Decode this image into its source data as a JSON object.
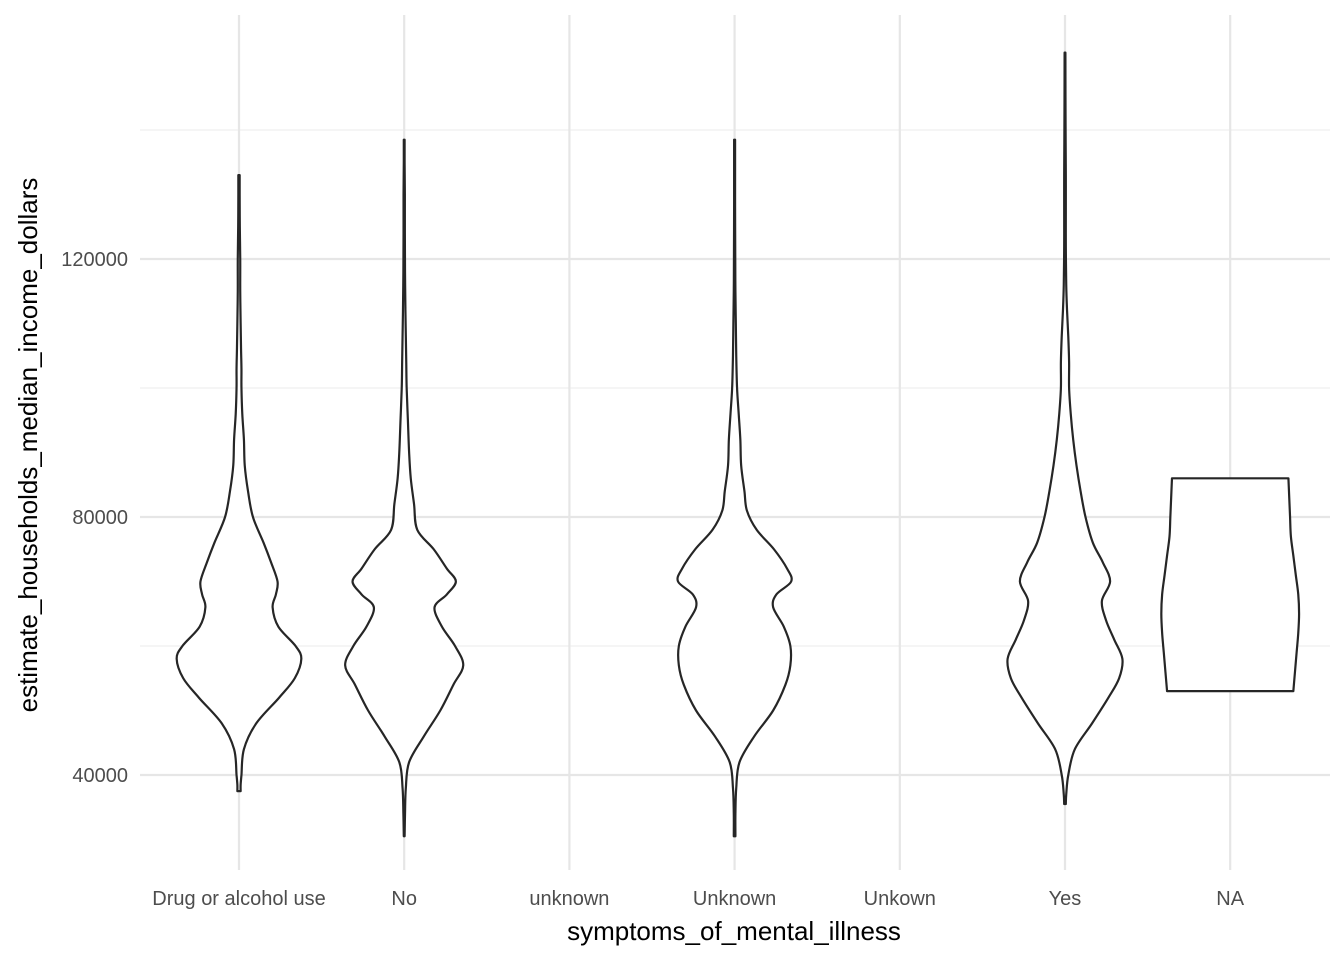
{
  "chart_data": {
    "type": "violin",
    "xlabel": "symptoms_of_mental_illness",
    "ylabel": "estimate_households_median_income_dollars",
    "categories": [
      "Drug or alcohol use",
      "No",
      "unknown",
      "Unknown",
      "Unkown",
      "Yes",
      "NA"
    ],
    "y_ticks": [
      40000,
      80000,
      120000
    ],
    "y_tick_labels": [
      "40000",
      "80000",
      "120000"
    ],
    "ylim": [
      25000,
      152000
    ],
    "grid": true,
    "legend": "none",
    "line_color": "#262626",
    "fill_color": "#ffffff",
    "series": [
      {
        "category": "Drug or alcohol use",
        "y_min": 37500,
        "y_max": 133000,
        "density_profile": [
          [
            37500,
            0.02
          ],
          [
            38500,
            0.02
          ],
          [
            40000,
            0.03
          ],
          [
            44000,
            0.06
          ],
          [
            48000,
            0.21
          ],
          [
            52000,
            0.49
          ],
          [
            55000,
            0.68
          ],
          [
            58000,
            0.76
          ],
          [
            60000,
            0.69
          ],
          [
            63000,
            0.48
          ],
          [
            66000,
            0.41
          ],
          [
            68000,
            0.45
          ],
          [
            70000,
            0.47
          ],
          [
            73000,
            0.39
          ],
          [
            76000,
            0.3
          ],
          [
            80000,
            0.17
          ],
          [
            84000,
            0.11
          ],
          [
            88000,
            0.07
          ],
          [
            92000,
            0.06
          ],
          [
            96000,
            0.04
          ],
          [
            100000,
            0.03
          ],
          [
            103000,
            0.03
          ],
          [
            106000,
            0.025
          ],
          [
            110000,
            0.02
          ],
          [
            115000,
            0.015
          ],
          [
            120000,
            0.015
          ],
          [
            125000,
            0.01
          ],
          [
            130000,
            0.008
          ],
          [
            133000,
            0.008
          ]
        ]
      },
      {
        "category": "No",
        "y_min": 30500,
        "y_max": 138500,
        "density_profile": [
          [
            30500,
            0.005
          ],
          [
            34000,
            0.01
          ],
          [
            38000,
            0.02
          ],
          [
            42000,
            0.06
          ],
          [
            46000,
            0.24
          ],
          [
            50000,
            0.44
          ],
          [
            54000,
            0.6
          ],
          [
            57000,
            0.72
          ],
          [
            60000,
            0.62
          ],
          [
            63000,
            0.46
          ],
          [
            66000,
            0.37
          ],
          [
            68000,
            0.52
          ],
          [
            70000,
            0.63
          ],
          [
            72000,
            0.52
          ],
          [
            75000,
            0.36
          ],
          [
            78000,
            0.16
          ],
          [
            82000,
            0.12
          ],
          [
            86000,
            0.08
          ],
          [
            90000,
            0.06
          ],
          [
            95000,
            0.045
          ],
          [
            100000,
            0.03
          ],
          [
            104000,
            0.025
          ],
          [
            108000,
            0.02
          ],
          [
            112000,
            0.015
          ],
          [
            118000,
            0.01
          ],
          [
            124000,
            0.008
          ],
          [
            130000,
            0.008
          ],
          [
            135000,
            0.005
          ],
          [
            138500,
            0.005
          ]
        ]
      },
      {
        "category": "Unknown",
        "y_min": 30500,
        "y_max": 138500,
        "density_profile": [
          [
            30500,
            0.01
          ],
          [
            34000,
            0.01
          ],
          [
            38000,
            0.02
          ],
          [
            42000,
            0.06
          ],
          [
            46000,
            0.24
          ],
          [
            50000,
            0.47
          ],
          [
            54000,
            0.62
          ],
          [
            57000,
            0.68
          ],
          [
            60000,
            0.68
          ],
          [
            63000,
            0.6
          ],
          [
            66000,
            0.47
          ],
          [
            68000,
            0.51
          ],
          [
            70000,
            0.69
          ],
          [
            72000,
            0.64
          ],
          [
            75000,
            0.48
          ],
          [
            78000,
            0.27
          ],
          [
            81000,
            0.15
          ],
          [
            84000,
            0.12
          ],
          [
            88000,
            0.08
          ],
          [
            92000,
            0.07
          ],
          [
            96000,
            0.05
          ],
          [
            100000,
            0.03
          ],
          [
            105000,
            0.02
          ],
          [
            110000,
            0.015
          ],
          [
            115000,
            0.01
          ],
          [
            120000,
            0.008
          ],
          [
            128000,
            0.006
          ],
          [
            135000,
            0.006
          ],
          [
            138500,
            0.006
          ]
        ]
      },
      {
        "category": "Yes",
        "y_min": 35500,
        "y_max": 152000,
        "density_profile": [
          [
            35500,
            0.01
          ],
          [
            37000,
            0.015
          ],
          [
            40000,
            0.04
          ],
          [
            44000,
            0.12
          ],
          [
            48000,
            0.33
          ],
          [
            52000,
            0.53
          ],
          [
            55000,
            0.66
          ],
          [
            58000,
            0.7
          ],
          [
            61000,
            0.6
          ],
          [
            64000,
            0.5
          ],
          [
            67000,
            0.45
          ],
          [
            70000,
            0.55
          ],
          [
            73000,
            0.46
          ],
          [
            76000,
            0.34
          ],
          [
            80000,
            0.25
          ],
          [
            84000,
            0.19
          ],
          [
            88000,
            0.14
          ],
          [
            92000,
            0.1
          ],
          [
            96000,
            0.07
          ],
          [
            100000,
            0.05
          ],
          [
            104000,
            0.05
          ],
          [
            108000,
            0.04
          ],
          [
            112000,
            0.025
          ],
          [
            116000,
            0.015
          ],
          [
            122000,
            0.01
          ],
          [
            128000,
            0.01
          ],
          [
            133000,
            0.01
          ],
          [
            138000,
            0.008
          ],
          [
            145000,
            0.006
          ],
          [
            152000,
            0.005
          ]
        ]
      },
      {
        "category": "NA",
        "y_min": 53000,
        "y_max": 86000,
        "density_profile": [
          [
            53000,
            0.77
          ],
          [
            56000,
            0.79
          ],
          [
            59000,
            0.81
          ],
          [
            62000,
            0.83
          ],
          [
            65000,
            0.84
          ],
          [
            68000,
            0.83
          ],
          [
            71000,
            0.8
          ],
          [
            74000,
            0.77
          ],
          [
            77000,
            0.74
          ],
          [
            80000,
            0.73
          ],
          [
            83000,
            0.72
          ],
          [
            86000,
            0.71
          ]
        ]
      }
    ]
  }
}
